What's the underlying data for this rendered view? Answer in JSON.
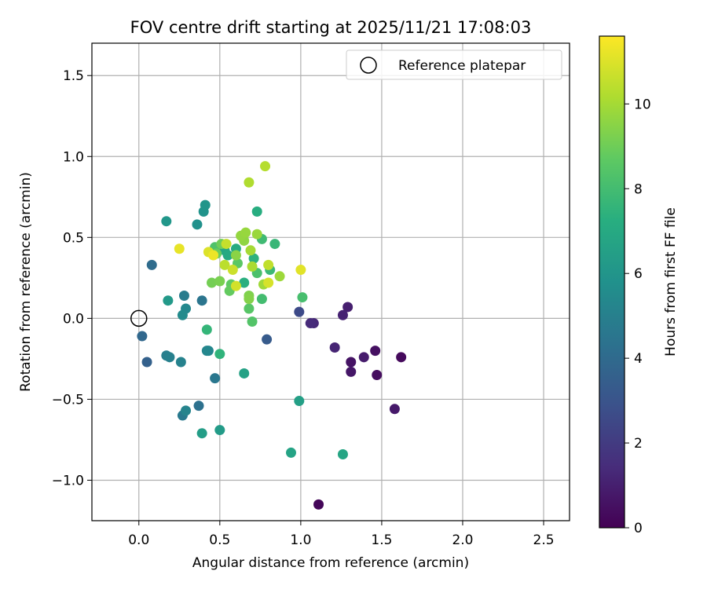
{
  "chart_data": {
    "type": "scatter",
    "title": "FOV centre drift starting at 2025/11/21 17:08:03",
    "xlabel": "Angular distance from reference (arcmin)",
    "ylabel": "Rotation from reference (arcmin)",
    "xlim": [
      -0.29,
      2.66
    ],
    "ylim": [
      -1.25,
      1.7
    ],
    "xticks": [
      0.0,
      0.5,
      1.0,
      1.5,
      2.0,
      2.5
    ],
    "xtick_labels": [
      "0.0",
      "0.5",
      "1.0",
      "1.5",
      "2.0",
      "2.5"
    ],
    "yticks": [
      -1.0,
      -0.5,
      0.0,
      0.5,
      1.0,
      1.5
    ],
    "ytick_labels": [
      "−1.0",
      "−0.5",
      "0.0",
      "0.5",
      "1.0",
      "1.5"
    ],
    "grid": true,
    "colormap": "viridis",
    "colorbar": {
      "label": "Hours from first FF file",
      "min": 0,
      "max": 11.6,
      "ticks": [
        0,
        2,
        4,
        6,
        8,
        10
      ],
      "tick_labels": [
        "0",
        "2",
        "4",
        "6",
        "8",
        "10"
      ]
    },
    "legend": {
      "position": "top-right",
      "entries": [
        "Reference platepar"
      ]
    },
    "reference_point": {
      "x": 0.0,
      "y": 0.0,
      "marker": "open-circle"
    },
    "points": [
      {
        "x": 1.11,
        "y": -1.15,
        "h": 0.2
      },
      {
        "x": 1.62,
        "y": -0.24,
        "h": 0.3
      },
      {
        "x": 1.47,
        "y": -0.35,
        "h": 0.4
      },
      {
        "x": 1.46,
        "y": -0.2,
        "h": 0.5
      },
      {
        "x": 1.31,
        "y": -0.27,
        "h": 0.6
      },
      {
        "x": 1.31,
        "y": -0.33,
        "h": 0.7
      },
      {
        "x": 1.58,
        "y": -0.56,
        "h": 0.8
      },
      {
        "x": 1.39,
        "y": -0.24,
        "h": 0.9
      },
      {
        "x": 1.29,
        "y": 0.07,
        "h": 1.0
      },
      {
        "x": 1.26,
        "y": 0.02,
        "h": 1.1
      },
      {
        "x": 1.21,
        "y": -0.18,
        "h": 1.2
      },
      {
        "x": 1.08,
        "y": -0.03,
        "h": 1.3
      },
      {
        "x": 1.06,
        "y": -0.03,
        "h": 1.4
      },
      {
        "x": 0.99,
        "y": 0.04,
        "h": 2.6
      },
      {
        "x": 0.79,
        "y": -0.13,
        "h": 3.3
      },
      {
        "x": 0.05,
        "y": -0.27,
        "h": 3.6
      },
      {
        "x": 0.02,
        "y": -0.11,
        "h": 3.9
      },
      {
        "x": 0.08,
        "y": 0.33,
        "h": 4.1
      },
      {
        "x": 0.37,
        "y": -0.54,
        "h": 4.3
      },
      {
        "x": 0.39,
        "y": 0.11,
        "h": 4.5
      },
      {
        "x": 0.47,
        "y": -0.37,
        "h": 4.6
      },
      {
        "x": 0.27,
        "y": -0.6,
        "h": 4.7
      },
      {
        "x": 0.28,
        "y": 0.14,
        "h": 4.8
      },
      {
        "x": 0.17,
        "y": -0.23,
        "h": 4.9
      },
      {
        "x": 0.19,
        "y": -0.24,
        "h": 5.0
      },
      {
        "x": 0.26,
        "y": -0.27,
        "h": 5.1
      },
      {
        "x": 0.29,
        "y": -0.57,
        "h": 5.2
      },
      {
        "x": 0.42,
        "y": -0.2,
        "h": 5.3
      },
      {
        "x": 0.43,
        "y": -0.2,
        "h": 5.35
      },
      {
        "x": 0.29,
        "y": 0.06,
        "h": 5.4
      },
      {
        "x": 0.27,
        "y": 0.02,
        "h": 5.5
      },
      {
        "x": 0.36,
        "y": 0.58,
        "h": 5.8
      },
      {
        "x": 0.4,
        "y": 0.66,
        "h": 5.9
      },
      {
        "x": 0.41,
        "y": 0.7,
        "h": 6.0
      },
      {
        "x": 0.17,
        "y": 0.6,
        "h": 6.1
      },
      {
        "x": 0.18,
        "y": 0.11,
        "h": 6.2
      },
      {
        "x": 0.5,
        "y": -0.69,
        "h": 6.3
      },
      {
        "x": 0.39,
        "y": -0.71,
        "h": 6.4
      },
      {
        "x": 0.99,
        "y": -0.51,
        "h": 6.5
      },
      {
        "x": 0.65,
        "y": -0.34,
        "h": 6.6
      },
      {
        "x": 0.94,
        "y": -0.83,
        "h": 6.7
      },
      {
        "x": 1.26,
        "y": -0.84,
        "h": 6.8
      },
      {
        "x": 0.53,
        "y": 0.42,
        "h": 6.9
      },
      {
        "x": 0.55,
        "y": 0.39,
        "h": 7.0
      },
      {
        "x": 0.6,
        "y": 0.43,
        "h": 7.1
      },
      {
        "x": 0.73,
        "y": 0.66,
        "h": 7.2
      },
      {
        "x": 0.65,
        "y": 0.22,
        "h": 7.3
      },
      {
        "x": 0.71,
        "y": 0.37,
        "h": 7.4
      },
      {
        "x": 0.5,
        "y": -0.22,
        "h": 7.5
      },
      {
        "x": 0.42,
        "y": -0.07,
        "h": 7.6
      },
      {
        "x": 0.84,
        "y": 0.46,
        "h": 7.7
      },
      {
        "x": 0.81,
        "y": 0.3,
        "h": 7.8
      },
      {
        "x": 0.76,
        "y": 0.49,
        "h": 7.9
      },
      {
        "x": 0.76,
        "y": 0.12,
        "h": 8.0
      },
      {
        "x": 1.01,
        "y": 0.13,
        "h": 8.1
      },
      {
        "x": 0.73,
        "y": 0.28,
        "h": 8.2
      },
      {
        "x": 0.47,
        "y": 0.44,
        "h": 8.3
      },
      {
        "x": 0.7,
        "y": -0.02,
        "h": 8.4
      },
      {
        "x": 0.68,
        "y": 0.06,
        "h": 8.5
      },
      {
        "x": 0.61,
        "y": 0.34,
        "h": 8.6
      },
      {
        "x": 0.57,
        "y": 0.21,
        "h": 8.7
      },
      {
        "x": 0.56,
        "y": 0.17,
        "h": 8.8
      },
      {
        "x": 0.48,
        "y": 0.4,
        "h": 8.9
      },
      {
        "x": 0.51,
        "y": 0.46,
        "h": 9.0
      },
      {
        "x": 0.45,
        "y": 0.22,
        "h": 9.1
      },
      {
        "x": 0.5,
        "y": 0.23,
        "h": 9.2
      },
      {
        "x": 0.68,
        "y": 0.14,
        "h": 9.3
      },
      {
        "x": 0.68,
        "y": 0.12,
        "h": 9.4
      },
      {
        "x": 0.6,
        "y": 0.39,
        "h": 9.5
      },
      {
        "x": 0.65,
        "y": 0.48,
        "h": 9.6
      },
      {
        "x": 0.63,
        "y": 0.51,
        "h": 9.7
      },
      {
        "x": 0.66,
        "y": 0.53,
        "h": 9.75
      },
      {
        "x": 0.73,
        "y": 0.52,
        "h": 9.8
      },
      {
        "x": 0.87,
        "y": 0.26,
        "h": 9.85
      },
      {
        "x": 0.77,
        "y": 0.21,
        "h": 9.9
      },
      {
        "x": 0.69,
        "y": 0.42,
        "h": 10.0
      },
      {
        "x": 0.7,
        "y": 0.32,
        "h": 10.1
      },
      {
        "x": 0.68,
        "y": 0.84,
        "h": 10.2
      },
      {
        "x": 0.78,
        "y": 0.94,
        "h": 10.3
      },
      {
        "x": 0.53,
        "y": 0.33,
        "h": 10.4
      },
      {
        "x": 0.8,
        "y": 0.33,
        "h": 10.5
      },
      {
        "x": 0.54,
        "y": 0.46,
        "h": 10.6
      },
      {
        "x": 0.58,
        "y": 0.3,
        "h": 10.7
      },
      {
        "x": 0.6,
        "y": 0.2,
        "h": 10.8
      },
      {
        "x": 0.8,
        "y": 0.22,
        "h": 10.9
      },
      {
        "x": 0.43,
        "y": 0.41,
        "h": 11.0
      },
      {
        "x": 1.0,
        "y": 0.3,
        "h": 11.1
      },
      {
        "x": 0.25,
        "y": 0.43,
        "h": 11.2
      },
      {
        "x": 0.46,
        "y": 0.39,
        "h": 11.3
      }
    ]
  }
}
